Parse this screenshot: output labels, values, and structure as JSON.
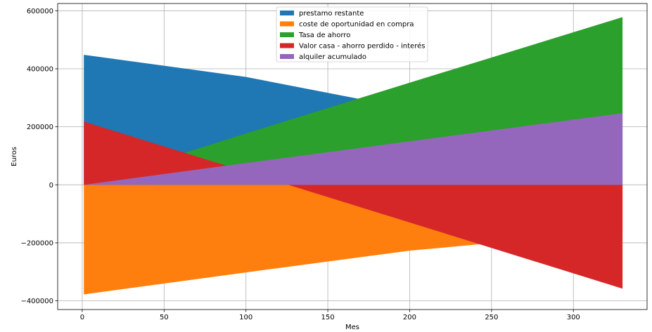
{
  "chart_data": {
    "type": "area",
    "xlabel": "Mes",
    "ylabel": "Euros",
    "xlim": [
      -15,
      345
    ],
    "ylim": [
      -430000,
      625000
    ],
    "x_ticks": [
      0,
      50,
      100,
      150,
      200,
      250,
      300
    ],
    "y_ticks": [
      -400000,
      -200000,
      0,
      200000,
      400000,
      600000
    ],
    "x_tick_labels": [
      "0",
      "50",
      "100",
      "150",
      "200",
      "250",
      "300"
    ],
    "y_tick_labels": [
      "−400000",
      "−200000",
      "0",
      "200000",
      "400000",
      "600000"
    ],
    "grid": true,
    "legend_position": "top-center",
    "x": [
      1,
      100,
      200,
      330
    ],
    "series": [
      {
        "name": "prestamo restante",
        "color": "#1f77b4",
        "values": [
          448000,
          372000,
          262000,
          0
        ]
      },
      {
        "name": "coste de oportunidad en compra",
        "color": "#ff7f0e",
        "values": [
          -378000,
          -302000,
          -227000,
          -160000
        ]
      },
      {
        "name": "Tasa de ahorro",
        "color": "#2ca02c",
        "values": [
          0,
          177000,
          352000,
          578000
        ]
      },
      {
        "name": "Valor casa - ahorro perdido - interés",
        "color": "#d62728",
        "values": [
          218000,
          45000,
          -130000,
          -358000
        ]
      },
      {
        "name": "alquiler acumulado",
        "color": "#9467bd",
        "values": [
          0,
          75000,
          150000,
          247000
        ]
      }
    ]
  }
}
